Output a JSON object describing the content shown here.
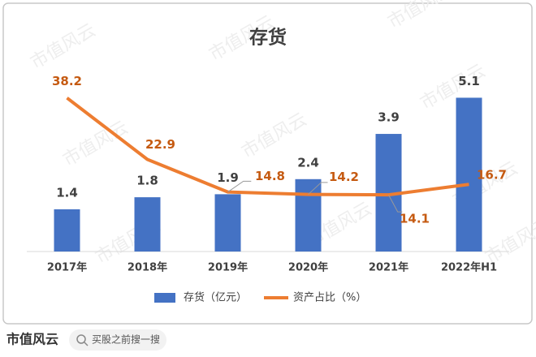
{
  "chart_data": {
    "type": "bar-line",
    "title": "存货",
    "categories": [
      "2017年",
      "2018年",
      "2019年",
      "2020年",
      "2021年",
      "2022年H1"
    ],
    "series": [
      {
        "name": "存货（亿元）",
        "type": "bar",
        "color": "#4472c4",
        "values": [
          1.4,
          1.8,
          1.9,
          2.4,
          3.9,
          5.1
        ]
      },
      {
        "name": "资产占比（%）",
        "type": "line",
        "axis": "y2",
        "color": "#ed7d31",
        "values": [
          38.2,
          22.9,
          14.8,
          14.2,
          14.1,
          16.7
        ]
      }
    ],
    "ylim": [
      0,
      6
    ],
    "y2lim": [
      0,
      45
    ],
    "legend": "bottom"
  },
  "watermark": "市值风云",
  "footer": {
    "brand": "市值风云",
    "search": "买股之前搜一搜"
  }
}
